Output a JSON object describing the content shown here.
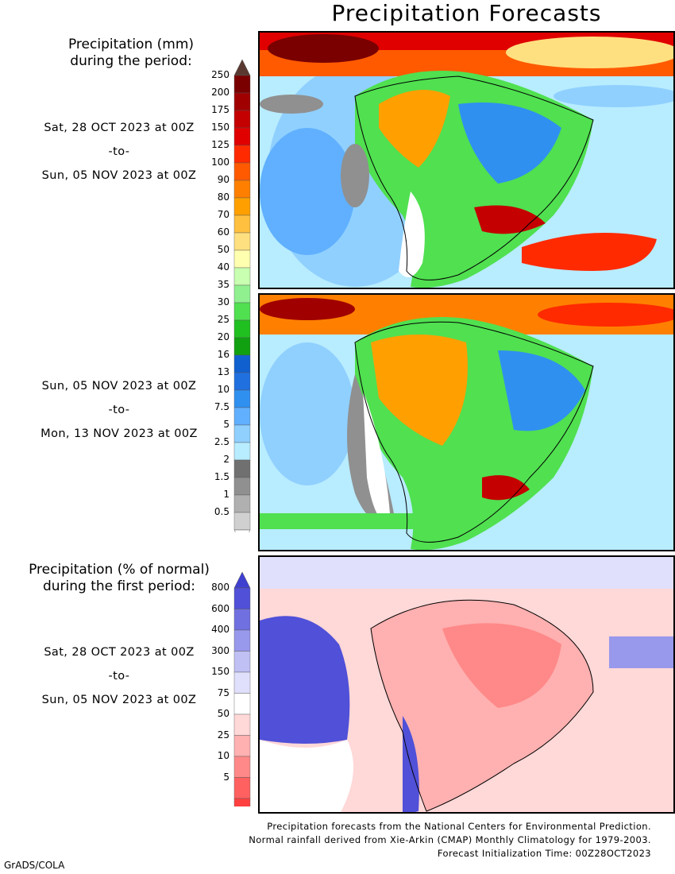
{
  "title": "Precipitation Forecasts",
  "legend_mm": {
    "title_line1": "Precipitation (mm)",
    "title_line2": "during the period:",
    "labels": [
      "250",
      "200",
      "175",
      "150",
      "125",
      "100",
      "90",
      "80",
      "70",
      "60",
      "50",
      "40",
      "35",
      "30",
      "25",
      "20",
      "16",
      "13",
      "10",
      "7.5",
      "5",
      "2.5",
      "2",
      "1.5",
      "1",
      "0.5"
    ],
    "colors": [
      "#7a0000",
      "#a00000",
      "#c40000",
      "#e00000",
      "#ff2a00",
      "#ff5a00",
      "#ff8000",
      "#ffa000",
      "#ffc040",
      "#ffe080",
      "#ffffb0",
      "#c8ffb0",
      "#90f090",
      "#50e050",
      "#20c020",
      "#10a010",
      "#1060d0",
      "#2070e0",
      "#3090f0",
      "#60b0ff",
      "#90d0ff",
      "#b8ecff",
      "#707070",
      "#909090",
      "#b0b0b0",
      "#d0d0d0"
    ]
  },
  "period1": {
    "start": "Sat, 28 OCT 2023 at 00Z",
    "sep": "-to-",
    "end": "Sun, 05 NOV 2023 at 00Z"
  },
  "period2": {
    "start": "Sun, 05 NOV 2023 at 00Z",
    "sep": "-to-",
    "end": "Mon, 13 NOV 2023 at 00Z"
  },
  "legend_pct": {
    "title_line1": "Precipitation (% of normal)",
    "title_line2": "during the first period:",
    "labels": [
      "800",
      "600",
      "400",
      "300",
      "150",
      "75",
      "50",
      "25",
      "10",
      "5"
    ],
    "colors": [
      "#5050d8",
      "#7070e0",
      "#9898ec",
      "#c0c0f4",
      "#e0e0fc",
      "#ffffff",
      "#ffd8d8",
      "#ffb0b0",
      "#ff8888",
      "#ff6060",
      "#ff4040"
    ]
  },
  "period3": {
    "start": "Sat, 28 OCT 2023 at 00Z",
    "sep": "-to-",
    "end": "Sun, 05 NOV 2023 at 00Z"
  },
  "footer": {
    "line1": "Precipitation forecasts from the National Centers for Environmental Prediction.",
    "line2": "Normal rainfall derived from Xie-Arkin (CMAP) Monthly Climatology for 1979-2003.",
    "line3": "Forecast Initialization Time: 00Z28OCT2023"
  },
  "credit": "GrADS/COLA"
}
